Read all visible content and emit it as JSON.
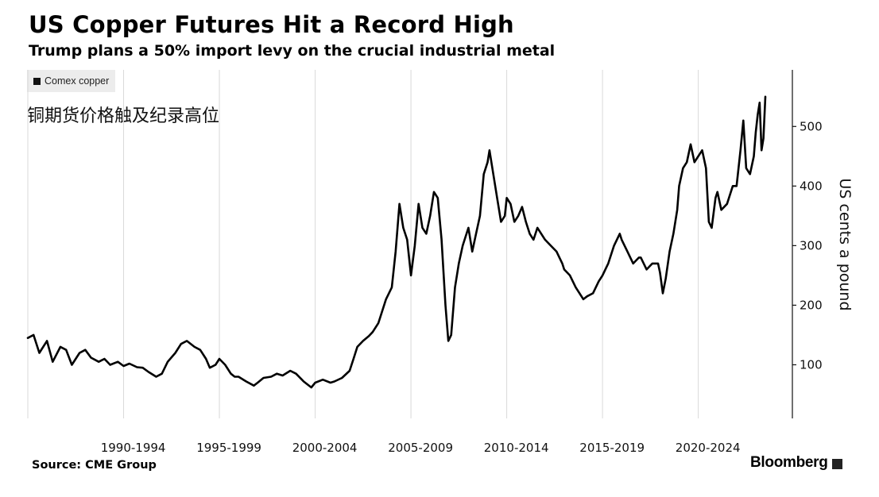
{
  "header": {
    "title": "US Copper Futures Hit a Record High",
    "subtitle": "Trump plans a 50% import levy on the crucial industrial metal"
  },
  "legend": {
    "label": "Comex copper"
  },
  "annotation": "铜期货价格触及纪录高位",
  "footer": {
    "source": "Source: CME Group",
    "logo": "Bloomberg"
  },
  "colors": {
    "line": "#000000",
    "grid": "#d9d9d9",
    "axis": "#111111",
    "legend_bg": "#ececec"
  },
  "chart_data": {
    "type": "line",
    "title": "US Copper Futures Hit a Record High",
    "subtitle": "Trump plans a 50% import levy on the crucial industrial metal",
    "ylabel": "US cents a pound",
    "ylim": [
      10,
      595
    ],
    "xlim": [
      1987.0,
      2025.5
    ],
    "grid": "vertical",
    "y_axis_side": "right",
    "yticks": [
      100,
      200,
      300,
      400,
      500
    ],
    "x_tick_labels": [
      {
        "label": "1990-1994",
        "at": 1992.5
      },
      {
        "label": "1995-1999",
        "at": 1997.5
      },
      {
        "label": "2000-2004",
        "at": 2002.5
      },
      {
        "label": "2005-2009",
        "at": 2007.5
      },
      {
        "label": "2010-2014",
        "at": 2012.5
      },
      {
        "label": "2015-2019",
        "at": 2017.5
      },
      {
        "label": "2020-2024",
        "at": 2022.5
      }
    ],
    "x_gridlines": [
      1987,
      1992,
      1997,
      2002,
      2007,
      2012,
      2017,
      2022
    ],
    "series": [
      {
        "name": "Comex copper",
        "x": [
          1987.0,
          1987.3,
          1987.6,
          1988.0,
          1988.3,
          1988.7,
          1989.0,
          1989.3,
          1989.7,
          1990.0,
          1990.3,
          1990.7,
          1991.0,
          1991.3,
          1991.7,
          1992.0,
          1992.3,
          1992.7,
          1993.0,
          1993.3,
          1993.7,
          1994.0,
          1994.3,
          1994.7,
          1995.0,
          1995.3,
          1995.7,
          1996.0,
          1996.3,
          1996.5,
          1996.8,
          1997.0,
          1997.3,
          1997.6,
          1997.8,
          1998.0,
          1998.4,
          1998.8,
          1999.0,
          1999.3,
          1999.7,
          2000.0,
          2000.3,
          2000.7,
          2001.0,
          2001.4,
          2001.8,
          2002.0,
          2002.4,
          2002.8,
          2003.0,
          2003.4,
          2003.8,
          2004.0,
          2004.2,
          2004.5,
          2004.8,
          2005.0,
          2005.3,
          2005.7,
          2006.0,
          2006.2,
          2006.4,
          2006.6,
          2006.8,
          2007.0,
          2007.2,
          2007.4,
          2007.6,
          2007.8,
          2008.0,
          2008.2,
          2008.4,
          2008.6,
          2008.8,
          2008.95,
          2009.1,
          2009.3,
          2009.5,
          2009.7,
          2010.0,
          2010.2,
          2010.4,
          2010.6,
          2010.8,
          2011.0,
          2011.1,
          2011.3,
          2011.5,
          2011.7,
          2011.9,
          2012.0,
          2012.2,
          2012.4,
          2012.6,
          2012.8,
          2013.0,
          2013.2,
          2013.4,
          2013.6,
          2013.8,
          2014.0,
          2014.3,
          2014.6,
          2014.9,
          2015.0,
          2015.3,
          2015.6,
          2015.9,
          2016.0,
          2016.2,
          2016.5,
          2016.8,
          2017.0,
          2017.3,
          2017.6,
          2017.9,
          2018.0,
          2018.3,
          2018.6,
          2018.9,
          2019.0,
          2019.3,
          2019.6,
          2019.9,
          2020.0,
          2020.15,
          2020.3,
          2020.5,
          2020.7,
          2020.9,
          2021.0,
          2021.2,
          2021.4,
          2021.6,
          2021.8,
          2022.0,
          2022.2,
          2022.4,
          2022.55,
          2022.7,
          2022.9,
          2023.0,
          2023.2,
          2023.5,
          2023.8,
          2024.0,
          2024.2,
          2024.35,
          2024.5,
          2024.7,
          2024.9,
          2025.0,
          2025.1,
          2025.2,
          2025.3,
          2025.4,
          2025.5
        ],
        "y": [
          145,
          150,
          120,
          140,
          105,
          130,
          125,
          100,
          120,
          125,
          112,
          105,
          110,
          100,
          105,
          98,
          102,
          96,
          95,
          88,
          80,
          85,
          105,
          120,
          135,
          140,
          130,
          125,
          110,
          95,
          100,
          110,
          100,
          85,
          80,
          80,
          72,
          65,
          70,
          78,
          80,
          85,
          82,
          90,
          85,
          72,
          62,
          70,
          75,
          70,
          72,
          78,
          90,
          110,
          130,
          140,
          148,
          155,
          170,
          210,
          230,
          290,
          370,
          330,
          310,
          250,
          300,
          370,
          330,
          320,
          350,
          390,
          380,
          310,
          200,
          140,
          150,
          230,
          270,
          300,
          330,
          290,
          320,
          350,
          420,
          440,
          460,
          420,
          380,
          340,
          350,
          380,
          370,
          340,
          350,
          365,
          340,
          320,
          310,
          330,
          320,
          310,
          300,
          290,
          270,
          260,
          250,
          230,
          215,
          210,
          215,
          220,
          240,
          250,
          270,
          300,
          320,
          310,
          290,
          270,
          280,
          280,
          260,
          270,
          270,
          255,
          220,
          245,
          290,
          320,
          360,
          400,
          430,
          440,
          470,
          440,
          450,
          460,
          430,
          340,
          330,
          380,
          390,
          360,
          370,
          400,
          400,
          460,
          510,
          430,
          420,
          450,
          490,
          520,
          540,
          460,
          480,
          550
        ]
      }
    ]
  }
}
